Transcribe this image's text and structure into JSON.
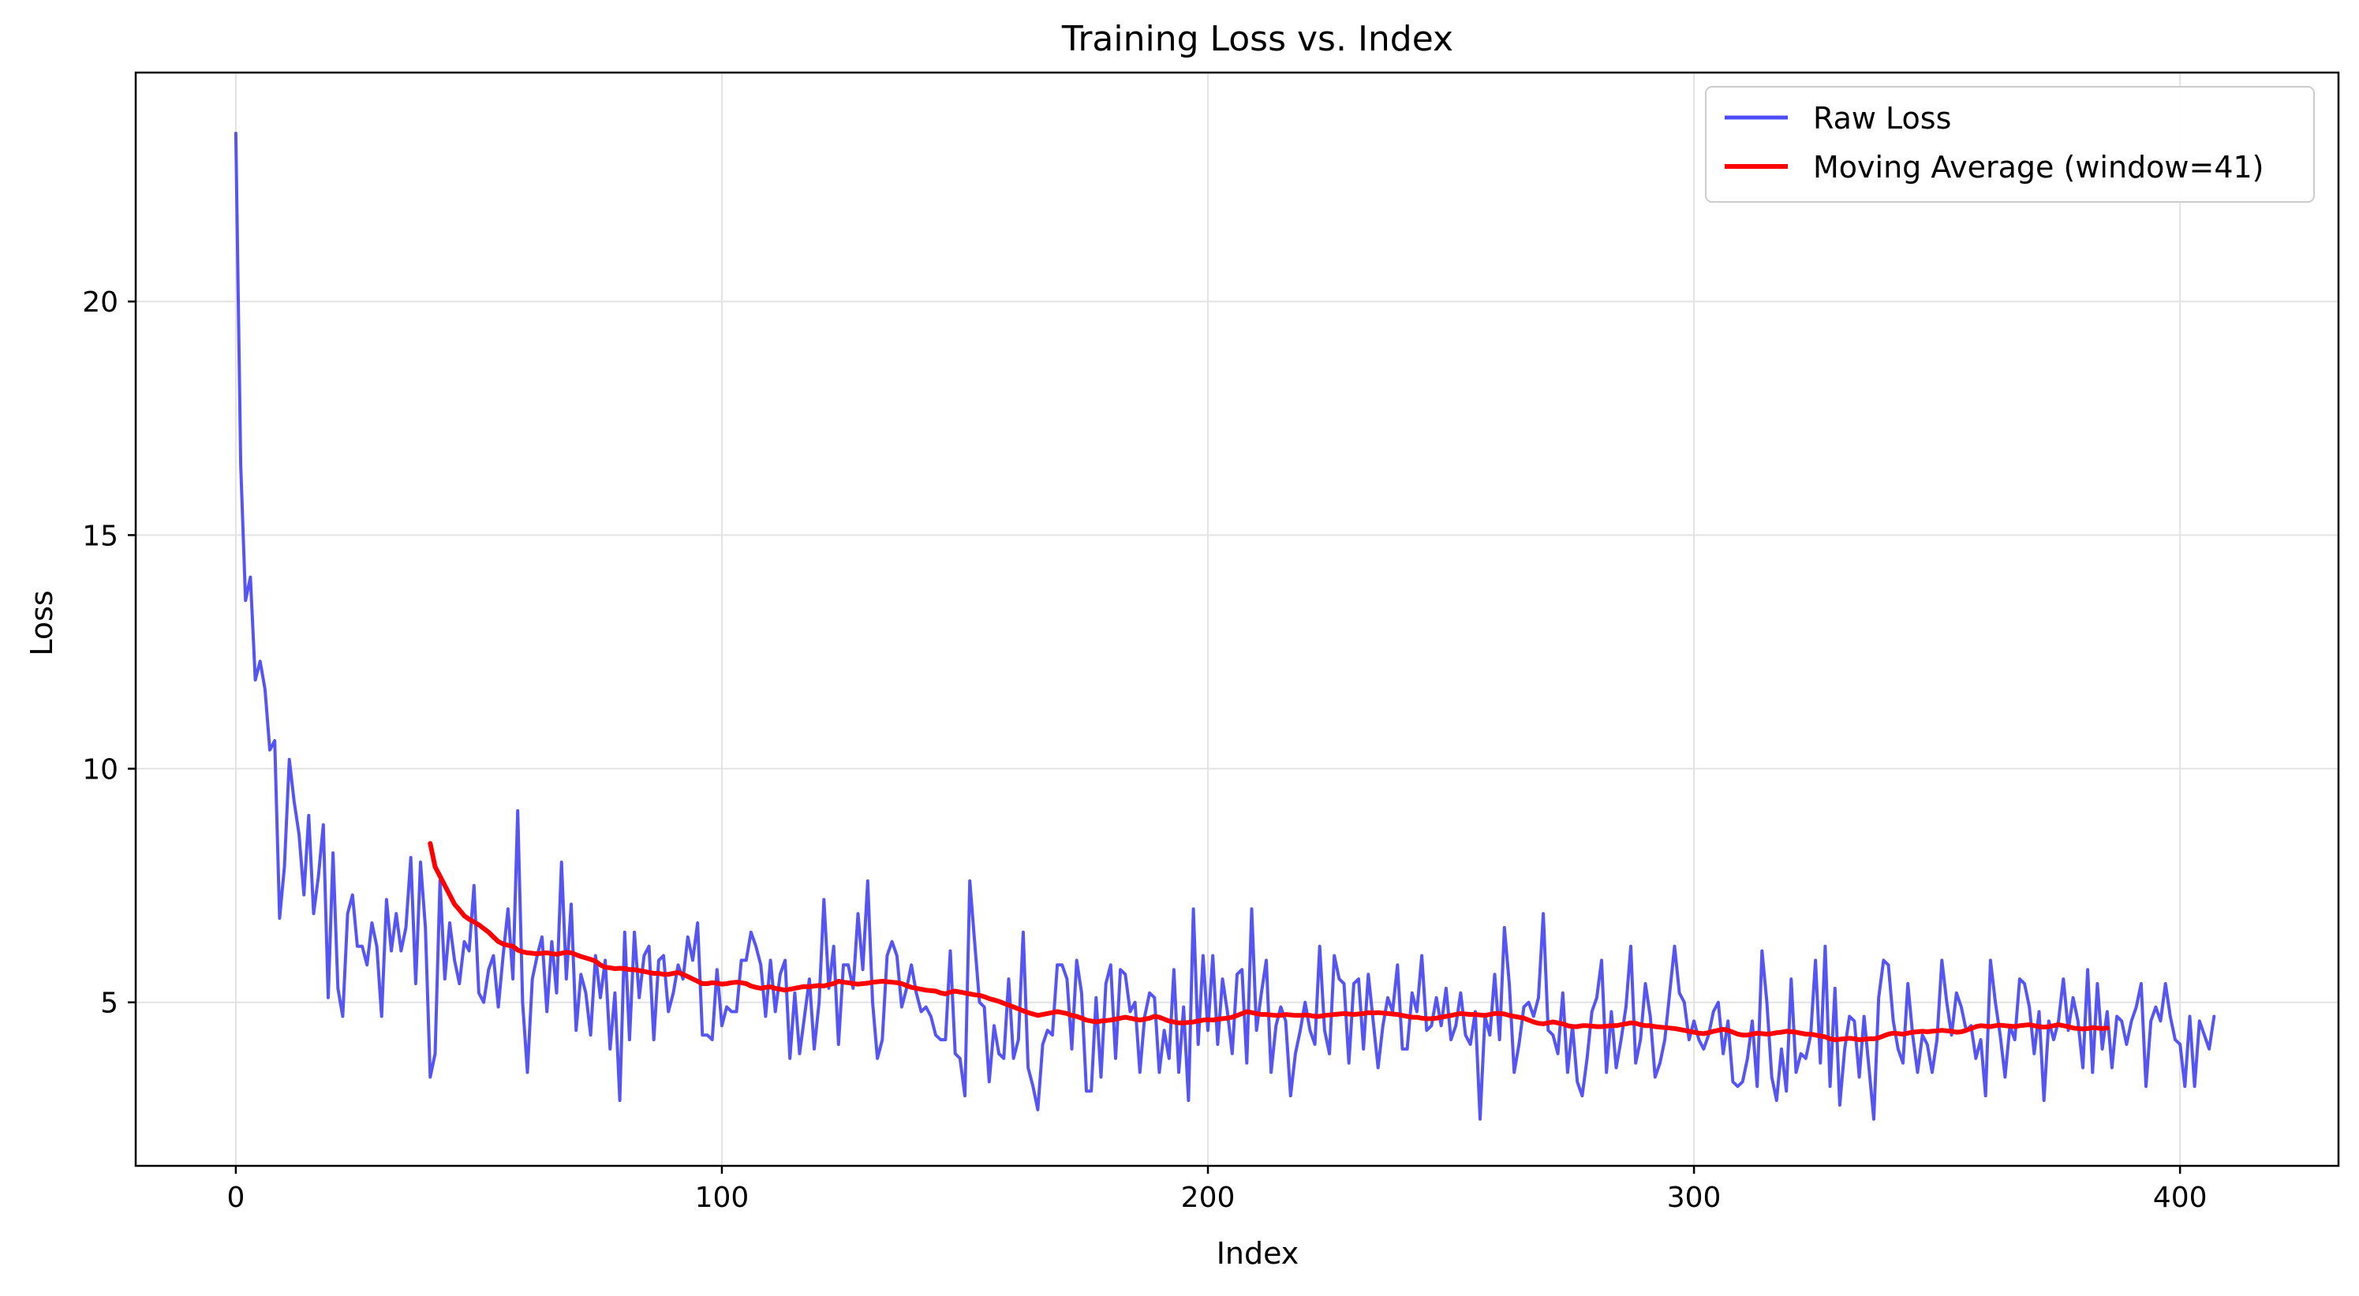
{
  "chart_data": {
    "type": "line",
    "title": "Training Loss vs. Index",
    "xlabel": "Index",
    "ylabel": "Loss",
    "xlim": [
      -20.6,
      432.6
    ],
    "ylim": [
      1.5,
      24.9
    ],
    "x_ticks": [
      0,
      100,
      200,
      300,
      400
    ],
    "x_tick_labels": [
      "0",
      "100",
      "200",
      "300",
      "400"
    ],
    "y_ticks": [
      5,
      10,
      15,
      20
    ],
    "y_tick_labels": [
      "5",
      "10",
      "15",
      "20"
    ],
    "grid": true,
    "legend_placement": "top-right",
    "series": [
      {
        "name": "Raw Loss",
        "color": "#4c4cf5",
        "x_start": 0,
        "values": [
          23.6,
          16.5,
          13.6,
          14.1,
          11.9,
          12.3,
          11.7,
          10.4,
          10.6,
          6.8,
          7.9,
          10.2,
          9.3,
          8.6,
          7.3,
          9.0,
          6.9,
          7.7,
          8.8,
          5.1,
          8.2,
          5.3,
          4.7,
          6.9,
          7.3,
          6.2,
          6.2,
          5.8,
          6.7,
          6.2,
          4.7,
          7.2,
          6.1,
          6.9,
          6.1,
          6.6,
          8.1,
          5.4,
          8.0,
          6.6,
          3.4,
          3.9,
          7.6,
          5.5,
          6.7,
          5.9,
          5.4,
          6.3,
          6.1,
          7.5,
          5.2,
          5.0,
          5.7,
          6.0,
          4.9,
          6.0,
          7.0,
          5.5,
          9.1,
          5.0,
          3.5,
          5.5,
          6.0,
          6.4,
          4.8,
          6.3,
          5.2,
          8.0,
          5.5,
          7.1,
          4.4,
          5.6,
          5.2,
          4.3,
          6.0,
          5.1,
          5.9,
          4.0,
          5.2,
          2.9,
          6.5,
          4.2,
          6.5,
          5.1,
          6.0,
          6.2,
          4.2,
          5.9,
          6.0,
          4.8,
          5.2,
          5.8,
          5.5,
          6.4,
          5.9,
          6.7,
          4.3,
          4.3,
          4.2,
          5.7,
          4.5,
          4.9,
          4.8,
          4.8,
          5.9,
          5.9,
          6.5,
          6.2,
          5.8,
          4.7,
          5.9,
          4.8,
          5.6,
          5.9,
          3.8,
          5.2,
          3.9,
          4.7,
          5.5,
          4.0,
          5.0,
          7.2,
          5.3,
          6.2,
          4.1,
          5.8,
          5.8,
          5.3,
          6.9,
          5.7,
          7.6,
          5.0,
          3.8,
          4.2,
          6.0,
          6.3,
          6.0,
          4.9,
          5.3,
          5.8,
          5.2,
          4.8,
          4.9,
          4.7,
          4.3,
          4.2,
          4.2,
          6.1,
          3.9,
          3.8,
          3.0,
          7.6,
          6.3,
          5.0,
          4.9,
          3.3,
          4.5,
          3.9,
          3.8,
          5.5,
          3.8,
          4.2,
          6.5,
          3.6,
          3.2,
          2.7,
          4.1,
          4.4,
          4.3,
          5.8,
          5.8,
          5.5,
          4.0,
          5.9,
          5.2,
          3.1,
          3.1,
          5.1,
          3.4,
          5.4,
          5.8,
          3.8,
          5.7,
          5.6,
          4.8,
          5.0,
          3.5,
          4.7,
          5.2,
          5.1,
          3.5,
          4.4,
          3.8,
          5.7,
          3.5,
          4.9,
          2.9,
          7.0,
          4.1,
          6.0,
          4.4,
          6.0,
          4.1,
          5.5,
          4.8,
          3.9,
          5.6,
          5.7,
          3.7,
          7.0,
          4.4,
          5.2,
          5.9,
          3.5,
          4.5,
          4.9,
          4.6,
          3.0,
          3.9,
          4.4,
          5.0,
          4.4,
          4.1,
          6.2,
          4.4,
          3.9,
          6.0,
          5.5,
          5.4,
          3.7,
          5.4,
          5.5,
          4.0,
          5.6,
          4.6,
          3.6,
          4.5,
          5.1,
          4.8,
          5.8,
          4.0,
          4.0,
          5.2,
          4.8,
          6.0,
          4.4,
          4.5,
          5.1,
          4.5,
          5.3,
          4.2,
          4.5,
          5.2,
          4.3,
          4.1,
          4.8,
          2.5,
          4.7,
          4.3,
          5.6,
          4.2,
          6.6,
          5.4,
          3.5,
          4.1,
          4.9,
          5.0,
          4.7,
          5.1,
          6.9,
          4.4,
          4.3,
          3.9,
          5.2,
          3.5,
          4.5,
          3.3,
          3.0,
          3.8,
          4.8,
          5.1,
          5.9,
          3.5,
          4.8,
          3.6,
          4.2,
          4.9,
          6.2,
          3.7,
          4.2,
          5.4,
          4.7,
          3.4,
          3.7,
          4.2,
          5.2,
          6.2,
          5.2,
          5.0,
          4.2,
          4.6,
          4.2,
          4.0,
          4.3,
          4.8,
          5.0,
          3.9,
          4.6,
          3.3,
          3.2,
          3.3,
          3.8,
          4.6,
          3.2,
          6.1,
          5.0,
          3.4,
          2.9,
          4.0,
          3.1,
          5.5,
          3.5,
          3.9,
          3.8,
          4.3,
          5.9,
          3.7,
          6.2,
          3.2,
          5.3,
          2.8,
          4.0,
          4.7,
          4.6,
          3.4,
          4.7,
          3.6,
          2.5,
          5.1,
          5.9,
          5.8,
          4.6,
          4.0,
          3.7,
          5.4,
          4.3,
          3.5,
          4.3,
          4.1,
          3.5,
          4.2,
          5.9,
          5.0,
          4.3,
          5.2,
          4.9,
          4.4,
          4.5,
          3.8,
          4.2,
          3.0,
          5.9,
          5.0,
          4.3,
          3.4,
          4.5,
          4.2,
          5.5,
          5.4,
          4.9,
          3.9,
          4.8,
          2.9,
          4.6,
          4.2,
          4.6,
          5.5,
          4.4,
          5.1,
          4.6,
          3.6,
          5.7,
          3.5,
          5.4,
          4.0,
          4.8,
          3.6,
          4.7,
          4.6,
          4.1,
          4.6,
          4.9,
          5.4,
          3.2,
          4.6,
          4.9,
          4.6,
          5.4,
          4.7,
          4.2,
          4.1,
          3.2,
          4.7,
          3.2,
          4.6,
          4.3,
          4.0,
          4.7
        ]
      },
      {
        "name": "Moving Average (window=41)",
        "color": "#ff0000",
        "x_start": 40,
        "values": [
          8.4,
          7.9,
          7.7,
          7.5,
          7.3,
          7.1,
          6.98,
          6.85,
          6.78,
          6.72,
          6.66,
          6.58,
          6.5,
          6.4,
          6.3,
          6.25,
          6.22,
          6.2,
          6.12,
          6.08,
          6.06,
          6.05,
          6.04,
          6.05,
          6.06,
          6.04,
          6.03,
          6.05,
          6.07,
          6.06,
          6.02,
          5.98,
          5.95,
          5.92,
          5.88,
          5.8,
          5.75,
          5.74,
          5.72,
          5.73,
          5.72,
          5.7,
          5.7,
          5.68,
          5.66,
          5.64,
          5.62,
          5.62,
          5.6,
          5.6,
          5.62,
          5.64,
          5.6,
          5.55,
          5.5,
          5.45,
          5.4,
          5.4,
          5.42,
          5.41,
          5.39,
          5.4,
          5.42,
          5.43,
          5.42,
          5.4,
          5.35,
          5.32,
          5.3,
          5.32,
          5.33,
          5.3,
          5.28,
          5.26,
          5.28,
          5.3,
          5.32,
          5.34,
          5.33,
          5.35,
          5.36,
          5.35,
          5.38,
          5.4,
          5.45,
          5.43,
          5.42,
          5.4,
          5.39,
          5.4,
          5.41,
          5.43,
          5.44,
          5.45,
          5.44,
          5.43,
          5.42,
          5.4,
          5.36,
          5.32,
          5.3,
          5.28,
          5.26,
          5.25,
          5.24,
          5.2,
          5.18,
          5.22,
          5.24,
          5.22,
          5.2,
          5.18,
          5.16,
          5.15,
          5.12,
          5.08,
          5.05,
          5.02,
          4.98,
          4.94,
          4.9,
          4.86,
          4.82,
          4.78,
          4.75,
          4.72,
          4.74,
          4.76,
          4.78,
          4.8,
          4.78,
          4.76,
          4.72,
          4.7,
          4.66,
          4.62,
          4.6,
          4.58,
          4.6,
          4.61,
          4.62,
          4.64,
          4.66,
          4.68,
          4.66,
          4.64,
          4.62,
          4.64,
          4.66,
          4.7,
          4.68,
          4.64,
          4.6,
          4.58,
          4.56,
          4.56,
          4.57,
          4.58,
          4.6,
          4.62,
          4.63,
          4.62,
          4.64,
          4.65,
          4.66,
          4.68,
          4.72,
          4.76,
          4.8,
          4.78,
          4.76,
          4.74,
          4.74,
          4.73,
          4.72,
          4.72,
          4.74,
          4.73,
          4.72,
          4.72,
          4.73,
          4.72,
          4.7,
          4.7,
          4.72,
          4.73,
          4.74,
          4.75,
          4.76,
          4.75,
          4.74,
          4.75,
          4.76,
          4.78,
          4.77,
          4.78,
          4.77,
          4.76,
          4.75,
          4.74,
          4.72,
          4.7,
          4.68,
          4.68,
          4.66,
          4.65,
          4.65,
          4.66,
          4.68,
          4.7,
          4.72,
          4.74,
          4.76,
          4.75,
          4.74,
          4.74,
          4.73,
          4.72,
          4.74,
          4.76,
          4.76,
          4.75,
          4.72,
          4.7,
          4.68,
          4.66,
          4.62,
          4.58,
          4.55,
          4.54,
          4.56,
          4.58,
          4.56,
          4.54,
          4.5,
          4.48,
          4.48,
          4.5,
          4.5,
          4.49,
          4.48,
          4.48,
          4.49,
          4.5,
          4.5,
          4.52,
          4.54,
          4.56,
          4.55,
          4.52,
          4.5,
          4.5,
          4.48,
          4.47,
          4.46,
          4.45,
          4.44,
          4.42,
          4.4,
          4.38,
          4.36,
          4.34,
          4.33,
          4.35,
          4.38,
          4.4,
          4.42,
          4.4,
          4.36,
          4.32,
          4.3,
          4.3,
          4.32,
          4.34,
          4.33,
          4.32,
          4.33,
          4.35,
          4.36,
          4.38,
          4.37,
          4.36,
          4.34,
          4.32,
          4.32,
          4.3,
          4.28,
          4.26,
          4.22,
          4.2,
          4.21,
          4.22,
          4.23,
          4.22,
          4.2,
          4.21,
          4.22,
          4.22,
          4.24,
          4.28,
          4.32,
          4.34,
          4.33,
          4.32,
          4.34,
          4.36,
          4.37,
          4.38,
          4.37,
          4.38,
          4.39,
          4.4,
          4.39,
          4.38,
          4.36,
          4.37,
          4.4,
          4.44,
          4.48,
          4.5,
          4.49,
          4.48,
          4.5,
          4.51,
          4.5,
          4.49,
          4.48,
          4.5,
          4.51,
          4.52,
          4.5,
          4.48,
          4.47,
          4.48,
          4.5,
          4.52,
          4.5,
          4.48,
          4.45,
          4.44,
          4.43,
          4.44,
          4.46,
          4.45,
          4.44,
          4.45
        ]
      }
    ]
  }
}
